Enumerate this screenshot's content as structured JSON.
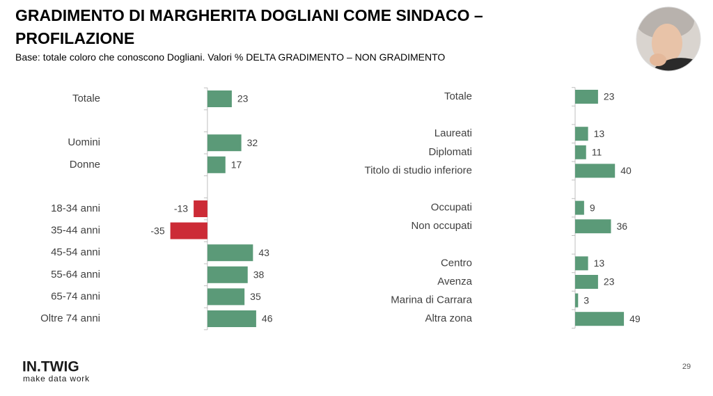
{
  "header": {
    "title_line1": "GRADIMENTO DI MARGHERITA DOGLIANI COME SINDACO –",
    "title_line2": "PROFILAZIONE",
    "subtitle": "Base: totale coloro che conoscono Dogliani. Valori % DELTA GRADIMENTO – NON GRADIMENTO"
  },
  "footer": {
    "logo": "IN.TWIG",
    "tagline": "make data work",
    "page_number": "29"
  },
  "chart_data": [
    {
      "type": "bar",
      "orientation": "horizontal",
      "categories": [
        "Totale",
        null,
        "Uomini",
        "Donne",
        null,
        "18-34 anni",
        "35-44 anni",
        "45-54 anni",
        "55-64 anni",
        "65-74 anni",
        "Oltre 74 anni"
      ],
      "values": [
        23,
        null,
        32,
        17,
        null,
        -13,
        -35,
        43,
        38,
        35,
        46
      ],
      "color": "#5b9a78",
      "negative_color": "#cc2b36",
      "xlim": [
        -40,
        50
      ]
    },
    {
      "type": "bar",
      "orientation": "horizontal",
      "categories": [
        "Totale",
        null,
        "Laureati",
        "Diplomati",
        "Titolo di studio inferiore",
        null,
        "Occupati",
        "Non occupati",
        null,
        "Centro",
        "Avenza",
        "Marina di Carrara",
        "Altra zona"
      ],
      "values": [
        23,
        null,
        13,
        11,
        40,
        null,
        9,
        36,
        null,
        13,
        23,
        3,
        49
      ],
      "color": "#5b9a78",
      "negative_color": "#cc2b36",
      "xlim": [
        0,
        50
      ]
    }
  ]
}
